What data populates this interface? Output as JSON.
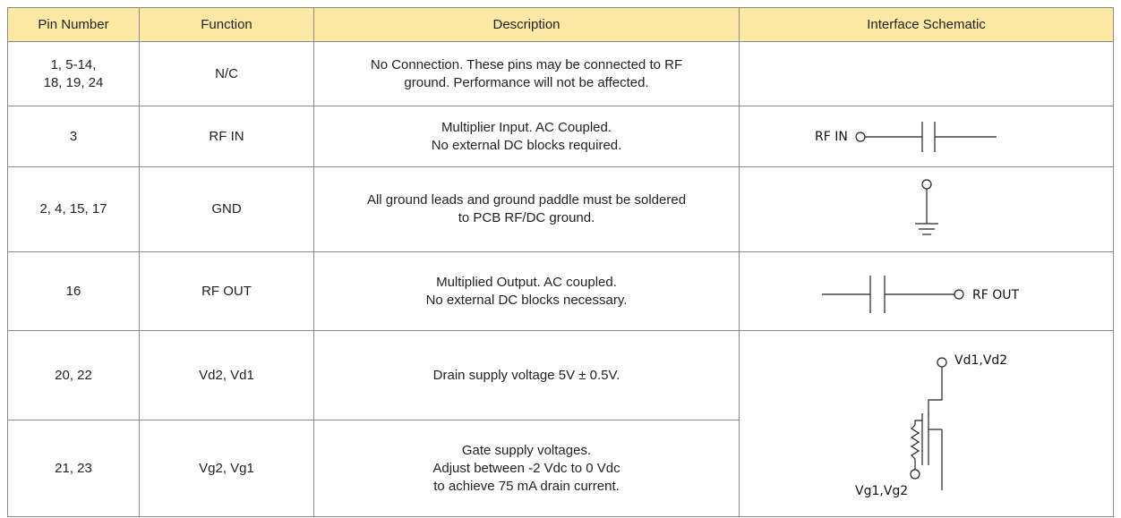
{
  "table": {
    "header": [
      "Pin Number",
      "Function",
      "Description",
      "Interface Schematic"
    ],
    "rows": [
      {
        "pin": [
          "1, 5-14,",
          "18, 19, 24"
        ],
        "function": "N/C",
        "description": [
          "No Connection. These pins may be connected to RF",
          "ground.  Performance will not be affected."
        ]
      },
      {
        "pin": [
          "3"
        ],
        "function": "RF IN",
        "description": [
          "Multiplier Input. AC Coupled.",
          "No external DC blocks required."
        ]
      },
      {
        "pin": [
          "2, 4, 15, 17"
        ],
        "function": "GND",
        "description": [
          "All ground leads and ground paddle must be soldered",
          "to PCB RF/DC ground."
        ]
      },
      {
        "pin": [
          "16"
        ],
        "function": "RF OUT",
        "description": [
          "Multiplied Output. AC coupled.",
          "No external DC blocks necessary."
        ]
      },
      {
        "pin": [
          "20, 22"
        ],
        "function": "Vd2, Vd1",
        "description": [
          "Drain supply voltage 5V ± 0.5V."
        ]
      },
      {
        "pin": [
          "21, 23"
        ],
        "function": "Vg2, Vg1",
        "description": [
          "Gate supply voltages.",
          "Adjust between -2 Vdc to 0 Vdc",
          "to achieve 75 mA drain current."
        ]
      }
    ]
  },
  "schematics": {
    "rf_in": "RF IN",
    "rf_out": "RF OUT",
    "drain": "Vd1,Vd2",
    "gate": "Vg1,Vg2"
  }
}
